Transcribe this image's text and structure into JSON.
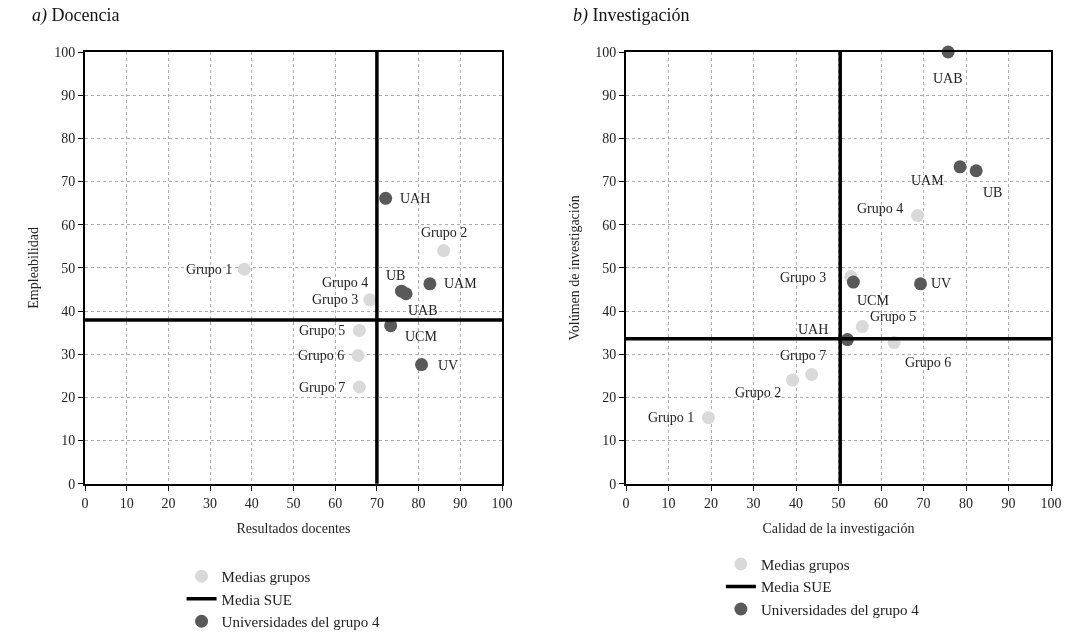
{
  "chart_data": [
    {
      "type": "scatter",
      "title": "a) Docencia",
      "xlabel": "Resultados docentes",
      "ylabel": "Empleabilidad",
      "xlim": [
        0,
        100
      ],
      "ylim": [
        0,
        100
      ],
      "xticks": [
        0,
        10,
        20,
        30,
        40,
        50,
        60,
        70,
        80,
        90,
        100
      ],
      "yticks": [
        0,
        10,
        20,
        30,
        40,
        50,
        60,
        70,
        80,
        90,
        100
      ],
      "grid": true,
      "marker": "circle",
      "legend": "bottom",
      "series": [
        {
          "name": "Medias grupos",
          "color": "#d9d9d9",
          "x": [
            38.2,
            86,
            68.3,
            null,
            65.8,
            65.5,
            65.8
          ],
          "values": [
            49.7,
            54,
            42.6,
            null,
            35.5,
            29.7,
            22.4
          ]
        },
        {
          "name": "Universidades del grupo 4",
          "color": "#595959",
          "x": [
            72.1,
            75.9,
            77,
            82.7,
            73.3,
            80.7
          ],
          "values": [
            66.1,
            44.6,
            44,
            46.3,
            36.6,
            27.6
          ]
        }
      ],
      "ref_lines": [
        {
          "axis": "x",
          "value": 70,
          "label": "Media SUE",
          "color": "#000000"
        },
        {
          "axis": "y",
          "value": 37.9,
          "color": "#000000"
        }
      ],
      "annotations": [
        {
          "text": "Grupo 1",
          "x": 38.2,
          "y": 49.7
        },
        {
          "text": "Grupo 2",
          "x": 86,
          "y": 54
        },
        {
          "text": "Grupo 3",
          "x": 68.3,
          "y": 42.6
        },
        {
          "text": "Grupo 4",
          "x": 77.3,
          "y": 44.2
        },
        {
          "text": "Grupo 5",
          "x": 65.8,
          "y": 35.5
        },
        {
          "text": "Grupo 6",
          "x": 65.5,
          "y": 29.7
        },
        {
          "text": "Grupo 7",
          "x": 65.8,
          "y": 22.4
        },
        {
          "text": "UAH",
          "x": 72.1,
          "y": 66.1
        },
        {
          "text": "UB",
          "x": 75.9,
          "y": 44.6
        },
        {
          "text": "UAB",
          "x": 77,
          "y": 44
        },
        {
          "text": "UAM",
          "x": 82.7,
          "y": 46.3
        },
        {
          "text": "UCM",
          "x": 73.3,
          "y": 36.6
        },
        {
          "text": "UV",
          "x": 80.7,
          "y": 27.6
        }
      ]
    },
    {
      "type": "scatter",
      "title": "b) Investigación",
      "xlabel": "Calidad de la investigación",
      "ylabel": "Volúmen de investigación",
      "xlim": [
        0,
        100
      ],
      "ylim": [
        0,
        100
      ],
      "xticks": [
        0,
        10,
        20,
        30,
        40,
        50,
        60,
        70,
        80,
        90,
        100
      ],
      "yticks": [
        0,
        10,
        20,
        30,
        40,
        50,
        60,
        70,
        80,
        90,
        100
      ],
      "grid": true,
      "marker": "circle",
      "legend": "bottom",
      "series": [
        {
          "name": "Medias grupos",
          "color": "#d9d9d9",
          "x": [
            19.4,
            39.2,
            52.9,
            68.6,
            55.6,
            63.1,
            43.7
          ],
          "values": [
            15.3,
            24,
            48,
            62.1,
            36.4,
            32.7,
            25.3
          ]
        },
        {
          "name": "Universidades del grupo 4",
          "color": "#595959",
          "x": [
            52.1,
            82.4,
            75.8,
            78.6,
            53.5,
            69.3
          ],
          "values": [
            33.4,
            72.5,
            100,
            73.4,
            46.7,
            46.3
          ]
        }
      ],
      "ref_lines": [
        {
          "axis": "x",
          "value": 50.4,
          "label": "Media SUE",
          "color": "#000000"
        },
        {
          "axis": "y",
          "value": 33.6,
          "color": "#000000"
        }
      ],
      "annotations": [
        {
          "text": "Grupo 1",
          "x": 19.4,
          "y": 15.3
        },
        {
          "text": "Grupo 2",
          "x": 39.2,
          "y": 24
        },
        {
          "text": "Grupo 3",
          "x": 52.9,
          "y": 48
        },
        {
          "text": "Grupo 4",
          "x": 68.6,
          "y": 62.1
        },
        {
          "text": "Grupo 5",
          "x": 55.6,
          "y": 36.4
        },
        {
          "text": "Grupo 6",
          "x": 63.1,
          "y": 32.7
        },
        {
          "text": "Grupo 7",
          "x": 43.7,
          "y": 25.3
        },
        {
          "text": "UAH",
          "x": 52.1,
          "y": 33.4
        },
        {
          "text": "UB",
          "x": 82.4,
          "y": 72.5
        },
        {
          "text": "UAB",
          "x": 75.8,
          "y": 100
        },
        {
          "text": "UAM",
          "x": 78.6,
          "y": 73.4
        },
        {
          "text": "UCM",
          "x": 53.5,
          "y": 46.7
        },
        {
          "text": "UV",
          "x": 69.3,
          "y": 46.3
        }
      ]
    }
  ]
}
